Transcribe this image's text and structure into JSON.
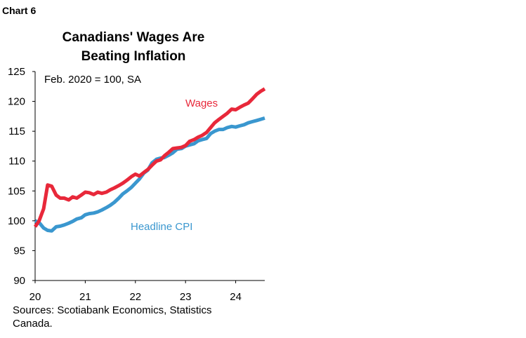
{
  "chart_label": "Chart 6",
  "title_line1": "Canadians' Wages Are",
  "title_line2": "Beating Inflation",
  "sources_line1": "Sources: Scotiabank Economics, Statistics",
  "sources_line2": "Canada.",
  "chart_data": {
    "type": "line",
    "annotation": "Feb. 2020 = 100, SA",
    "x_tick_labels": [
      "20",
      "21",
      "22",
      "23",
      "24"
    ],
    "x_tick_values": [
      2020,
      2021,
      2022,
      2023,
      2024
    ],
    "y_tick_labels": [
      "125",
      "120",
      "115",
      "110",
      "105",
      "100",
      "95",
      "90"
    ],
    "y_tick_values": [
      125,
      120,
      115,
      110,
      105,
      100,
      95,
      90
    ],
    "xlim": [
      2020.0,
      2024.58
    ],
    "ylim": [
      90,
      125
    ],
    "grid": false,
    "legend": "inline labels",
    "series": [
      {
        "name": "Wages",
        "color": "#e8283a",
        "x": [
          2020.0,
          2020.08,
          2020.17,
          2020.25,
          2020.33,
          2020.42,
          2020.5,
          2020.58,
          2020.67,
          2020.75,
          2020.83,
          2020.92,
          2021.0,
          2021.08,
          2021.17,
          2021.25,
          2021.33,
          2021.42,
          2021.5,
          2021.58,
          2021.67,
          2021.75,
          2021.83,
          2021.92,
          2022.0,
          2022.08,
          2022.17,
          2022.25,
          2022.33,
          2022.42,
          2022.5,
          2022.58,
          2022.67,
          2022.75,
          2022.83,
          2022.92,
          2023.0,
          2023.08,
          2023.17,
          2023.25,
          2023.33,
          2023.42,
          2023.5,
          2023.58,
          2023.67,
          2023.75,
          2023.83,
          2023.92,
          2024.0,
          2024.08,
          2024.17,
          2024.25,
          2024.33,
          2024.42,
          2024.5,
          2024.58
        ],
        "values": [
          99.0,
          100.0,
          102.0,
          106.0,
          105.8,
          104.3,
          103.8,
          103.8,
          103.5,
          104.0,
          103.8,
          104.3,
          104.8,
          104.7,
          104.4,
          104.8,
          104.6,
          104.8,
          105.2,
          105.5,
          105.9,
          106.3,
          106.8,
          107.4,
          107.8,
          107.5,
          108.1,
          108.6,
          109.3,
          110.0,
          110.2,
          110.9,
          111.5,
          112.1,
          112.2,
          112.3,
          112.6,
          113.3,
          113.6,
          114.0,
          114.3,
          114.8,
          115.6,
          116.4,
          117.0,
          117.5,
          118.0,
          118.7,
          118.6,
          119.0,
          119.4,
          119.7,
          120.4,
          121.2,
          121.7,
          122.1
        ]
      },
      {
        "name": "Headline CPI",
        "color": "#3a97cf",
        "x": [
          2020.0,
          2020.08,
          2020.17,
          2020.25,
          2020.33,
          2020.42,
          2020.5,
          2020.58,
          2020.67,
          2020.75,
          2020.83,
          2020.92,
          2021.0,
          2021.08,
          2021.17,
          2021.25,
          2021.33,
          2021.42,
          2021.5,
          2021.58,
          2021.67,
          2021.75,
          2021.83,
          2021.92,
          2022.0,
          2022.08,
          2022.17,
          2022.25,
          2022.33,
          2022.42,
          2022.5,
          2022.58,
          2022.67,
          2022.75,
          2022.83,
          2022.92,
          2023.0,
          2023.08,
          2023.17,
          2023.25,
          2023.33,
          2023.42,
          2023.5,
          2023.58,
          2023.67,
          2023.75,
          2023.83,
          2023.92,
          2024.0,
          2024.08,
          2024.17,
          2024.25,
          2024.33,
          2024.42,
          2024.5,
          2024.58
        ],
        "values": [
          100.0,
          99.7,
          98.8,
          98.4,
          98.3,
          99.0,
          99.1,
          99.3,
          99.6,
          99.9,
          100.3,
          100.5,
          101.0,
          101.2,
          101.3,
          101.5,
          101.8,
          102.2,
          102.6,
          103.1,
          103.8,
          104.5,
          105.0,
          105.6,
          106.3,
          107.0,
          108.0,
          108.5,
          109.7,
          110.3,
          110.5,
          110.6,
          111.0,
          111.4,
          112.0,
          112.1,
          112.5,
          112.7,
          112.9,
          113.4,
          113.6,
          113.8,
          114.6,
          115.0,
          115.3,
          115.3,
          115.6,
          115.8,
          115.7,
          115.9,
          116.1,
          116.4,
          116.6,
          116.8,
          117.0,
          117.2
        ]
      }
    ]
  }
}
